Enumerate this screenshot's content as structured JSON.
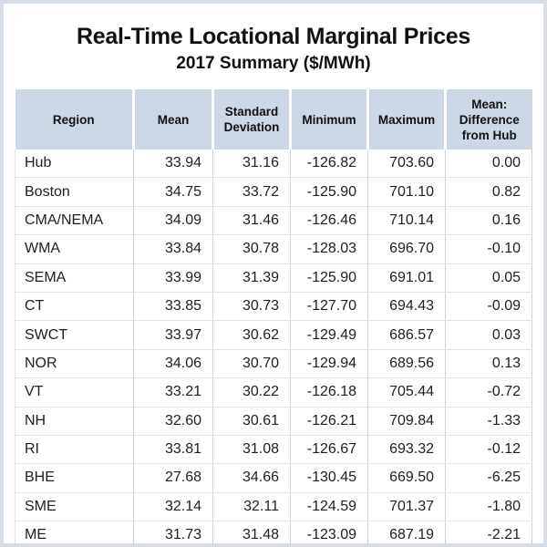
{
  "colors": {
    "page_border": "#d6dce8",
    "header_bg": "#cdd8e6",
    "grid_v": "#c7d2e2",
    "grid_h": "#dee5f0",
    "text": "#1c1c1c"
  },
  "chart_data": {
    "type": "table",
    "title": "Real-Time Locational Marginal Prices",
    "subtitle": "2017 Summary ($/MWh)",
    "columns": [
      "Region",
      "Mean",
      "Standard Deviation",
      "Minimum",
      "Maximum",
      "Mean: Difference from Hub"
    ],
    "rows": [
      [
        "Hub",
        "33.94",
        "31.16",
        "-126.82",
        "703.60",
        "0.00"
      ],
      [
        "Boston",
        "34.75",
        "33.72",
        "-125.90",
        "701.10",
        "0.82"
      ],
      [
        "CMA/NEMA",
        "34.09",
        "31.46",
        "-126.46",
        "710.14",
        "0.16"
      ],
      [
        "WMA",
        "33.84",
        "30.78",
        "-128.03",
        "696.70",
        "-0.10"
      ],
      [
        "SEMA",
        "33.99",
        "31.39",
        "-125.90",
        "691.01",
        "0.05"
      ],
      [
        "CT",
        "33.85",
        "30.73",
        "-127.70",
        "694.43",
        "-0.09"
      ],
      [
        "SWCT",
        "33.97",
        "30.62",
        "-129.49",
        "686.57",
        "0.03"
      ],
      [
        "NOR",
        "34.06",
        "30.70",
        "-129.94",
        "689.56",
        "0.13"
      ],
      [
        "VT",
        "33.21",
        "30.22",
        "-126.18",
        "705.44",
        "-0.72"
      ],
      [
        "NH",
        "32.60",
        "30.61",
        "-126.21",
        "709.84",
        "-1.33"
      ],
      [
        "RI",
        "33.81",
        "31.08",
        "-126.67",
        "693.32",
        "-0.12"
      ],
      [
        "BHE",
        "27.68",
        "34.66",
        "-130.45",
        "669.50",
        "-6.25"
      ],
      [
        "SME",
        "32.14",
        "32.11",
        "-124.59",
        "701.37",
        "-1.80"
      ],
      [
        "ME",
        "31.73",
        "31.48",
        "-123.09",
        "687.19",
        "-2.21"
      ]
    ]
  }
}
